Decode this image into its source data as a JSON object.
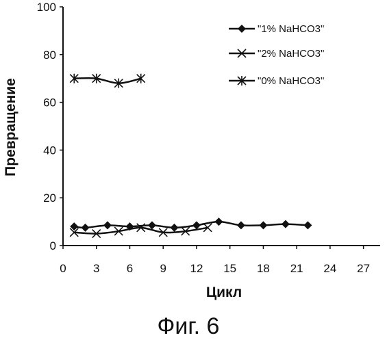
{
  "chart_data": {
    "type": "line",
    "xlabel": "Цикл",
    "ylabel": "Превращение",
    "xlim": [
      0,
      28.5
    ],
    "ylim": [
      0,
      100
    ],
    "xticks": [
      0,
      3,
      6,
      9,
      12,
      15,
      18,
      21,
      24,
      27
    ],
    "yticks": [
      0,
      20,
      40,
      60,
      80,
      100
    ],
    "grid": false,
    "legend_position": "top-right",
    "series": [
      {
        "name": "\"1% NaHCO3\"",
        "marker": "diamond",
        "x": [
          1,
          2,
          4,
          6,
          8,
          10,
          12,
          14,
          16,
          18,
          20,
          22
        ],
        "y": [
          8,
          7.5,
          8.5,
          8,
          8.5,
          7.5,
          8.5,
          10,
          8.5,
          8.5,
          9,
          8.5
        ]
      },
      {
        "name": "\"2% NaHCO3\"",
        "marker": "x",
        "x": [
          1,
          3,
          5,
          7,
          9,
          11,
          13
        ],
        "y": [
          5.5,
          5,
          6,
          7.5,
          5.5,
          6,
          7.5
        ]
      },
      {
        "name": "\"0% NaHCO3\"",
        "marker": "asterisk",
        "x": [
          1,
          3,
          5,
          7
        ],
        "y": [
          70,
          70,
          68,
          70
        ]
      }
    ]
  },
  "caption": "Фиг. 6"
}
